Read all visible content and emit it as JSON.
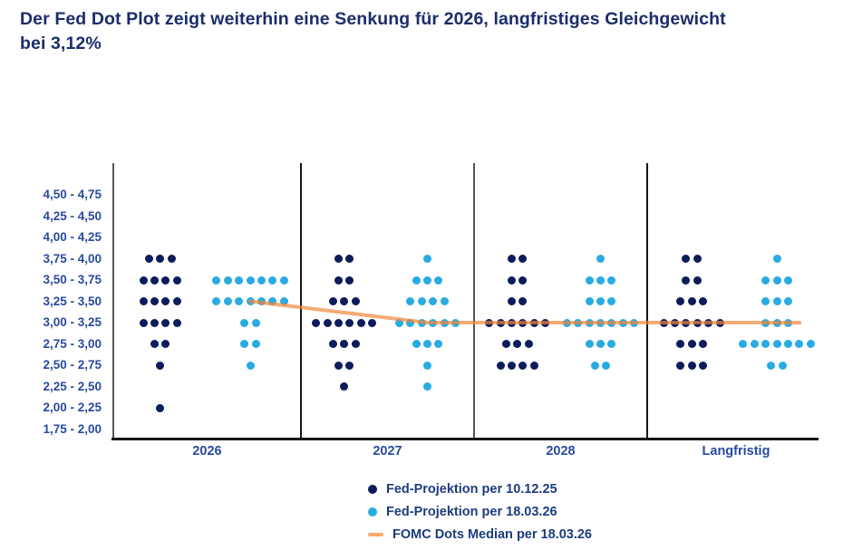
{
  "title": "Der Fed Dot Plot zeigt weiterhin eine Senkung für 2026, langfristiges Gleichgewicht bei 3,12%",
  "title_lines": [
    "Der Fed Dot Plot zeigt weiterhin eine Senkung für 2026, langfristiges Gleichgewicht",
    "bei 3,12%"
  ],
  "chart_data": {
    "type": "scatter",
    "subtype": "fed-dot-plot",
    "grid": "off",
    "legend_position": "bottom-center",
    "y_axis_tick_labels": [
      "4,50 - 4,75",
      "4,25 - 4,50",
      "4,00 - 4,25",
      "3,75 - 4,00",
      "3,50 - 3,75",
      "3,25 - 3,50",
      "3,00 - 3,25",
      "2,75 - 3,00",
      "2,50 - 2,75",
      "2,25 - 2,50",
      "2,00 - 2,25",
      "1,75 - 2,00"
    ],
    "x_categories": [
      "2026",
      "2027",
      "2028",
      "Langfristig"
    ],
    "series": [
      {
        "name": "Fed-Projektion per 10.12.25",
        "color": "#0d1c5b",
        "counts_by_panel": {
          "2026": [
            0,
            0,
            0,
            3,
            4,
            4,
            4,
            2,
            1,
            0,
            1,
            0
          ],
          "2027": [
            0,
            0,
            0,
            2,
            2,
            3,
            6,
            3,
            2,
            1,
            0,
            0
          ],
          "2028": [
            0,
            0,
            0,
            2,
            2,
            2,
            6,
            3,
            4,
            0,
            0,
            0
          ],
          "Langfristig": [
            0,
            0,
            0,
            2,
            2,
            3,
            6,
            3,
            3,
            0,
            0,
            0
          ]
        }
      },
      {
        "name": "Fed-Projektion per 18.03.26",
        "color": "#29abe2",
        "counts_by_panel": {
          "2026": [
            0,
            0,
            0,
            0,
            7,
            7,
            2,
            2,
            1,
            0,
            0,
            0
          ],
          "2027": [
            0,
            0,
            0,
            1,
            3,
            4,
            6,
            3,
            1,
            1,
            0,
            0
          ],
          "2028": [
            0,
            0,
            0,
            1,
            3,
            3,
            7,
            3,
            2,
            0,
            0,
            0
          ],
          "Langfristig": [
            0,
            0,
            0,
            1,
            3,
            3,
            3,
            7,
            2,
            0,
            0,
            0
          ]
        }
      }
    ],
    "median_line": {
      "name": "FOMC Dots Median per 18.03.26",
      "color": "#f6a96b",
      "stroke_base": "#f0883a",
      "values_by_panel": {
        "2026": 3.375,
        "2027": 3.125,
        "2028": 3.125,
        "Langfristig": 3.125
      },
      "level_index_by_panel": [
        5,
        6,
        6,
        6
      ]
    },
    "legend": [
      {
        "label": "Fed-Projektion per 10.12.25",
        "marker": "dot",
        "color": "#0d1c5b"
      },
      {
        "label": "Fed-Projektion per 18.03.26",
        "marker": "dot",
        "color": "#29abe2"
      },
      {
        "label": "FOMC Dots Median per 18.03.26",
        "marker": "line",
        "color": "#f6a96b"
      }
    ]
  },
  "colors": {
    "title_text": "#1b2d6b",
    "axis_label_text": "#2a4a9c",
    "legend_text": "#1d3c7c",
    "panel_border_strong": "#151515",
    "panel_border_light": "#555555",
    "background": "#ffffff"
  }
}
